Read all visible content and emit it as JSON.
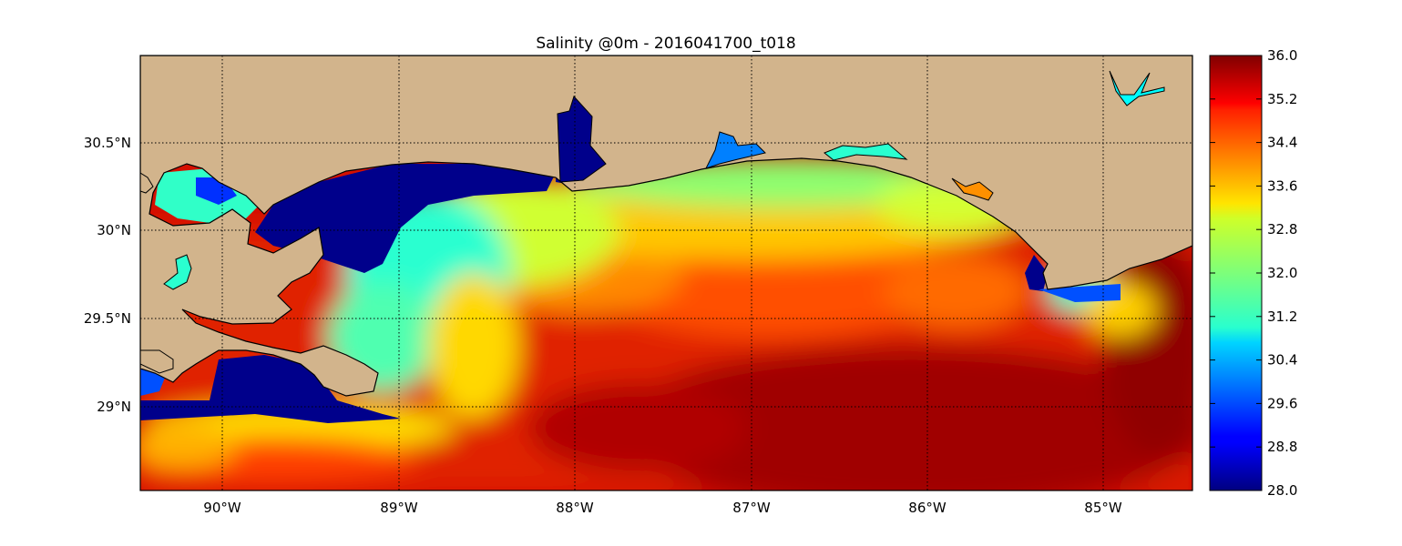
{
  "title": "Salinity @0m - 2016041700_t018",
  "map": {
    "lon_range": [
      -90.5,
      -84.5
    ],
    "lat_range": [
      28.55,
      31.0
    ],
    "grid": true,
    "grid_style": "dotted",
    "land_color": "#d2b48c",
    "x_ticks": [
      {
        "value": -90,
        "label": "90°W"
      },
      {
        "value": -89,
        "label": "89°W"
      },
      {
        "value": -88,
        "label": "88°W"
      },
      {
        "value": -87,
        "label": "87°W"
      },
      {
        "value": -86,
        "label": "86°W"
      },
      {
        "value": -85,
        "label": "85°W"
      }
    ],
    "y_ticks": [
      {
        "value": 29,
        "label": "29°N"
      },
      {
        "value": 29.5,
        "label": "29.5°N"
      },
      {
        "value": 30,
        "label": "30°N"
      },
      {
        "value": 30.5,
        "label": "30.5°N"
      }
    ]
  },
  "colorbar": {
    "colormap": "jet",
    "min": 28.0,
    "max": 36.0,
    "ticks": [
      "28.0",
      "28.8",
      "29.6",
      "30.4",
      "31.2",
      "32.0",
      "32.8",
      "33.6",
      "34.4",
      "35.2",
      "36.0"
    ]
  }
}
